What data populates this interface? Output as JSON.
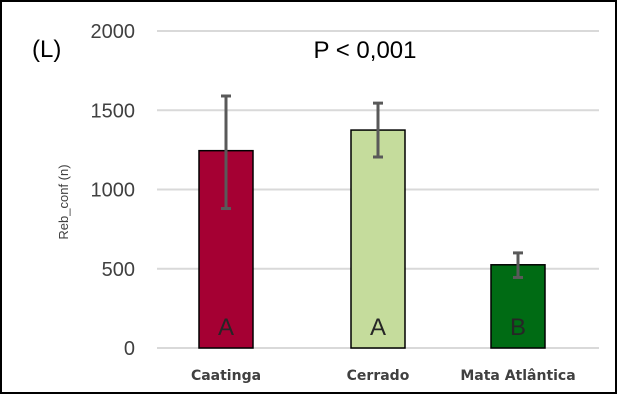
{
  "chart_data": {
    "type": "bar",
    "panel_label": "(L)",
    "annotation": "P < 0,001",
    "ylabel": "Reb_conf (n)",
    "xlabel": "",
    "ylim": [
      0,
      2000
    ],
    "yticks": [
      0,
      500,
      1000,
      1500,
      2000
    ],
    "grid": true,
    "categories": [
      "Caatinga",
      "Cerrado",
      "Mata Atlântica"
    ],
    "values": [
      1245,
      1375,
      525
    ],
    "error_low": [
      880,
      1205,
      445
    ],
    "error_high": [
      1590,
      1545,
      600
    ],
    "group_letters": [
      "A",
      "A",
      "B"
    ],
    "colors": [
      "#a50033",
      "#c5dc9c",
      "#006b14"
    ],
    "edge_color": "#000000",
    "error_color": "#595959",
    "grid_color": "#d9d9d9"
  }
}
